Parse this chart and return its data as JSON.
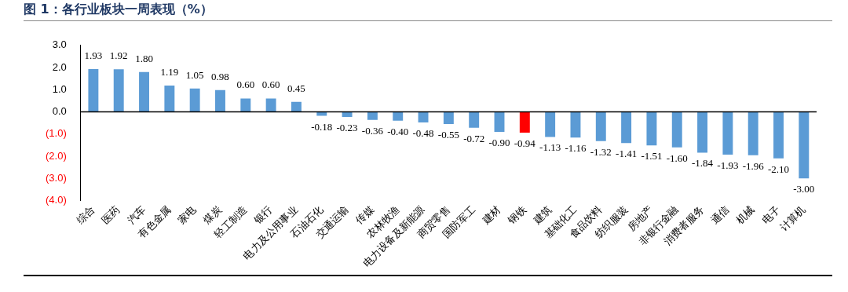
{
  "chart_data": {
    "type": "bar",
    "title": "图 1：各行业板块一周表现（%）",
    "categories": [
      "综合",
      "医药",
      "汽车",
      "有色金属",
      "家电",
      "煤炭",
      "轻工制造",
      "银行",
      "电力及公用事业",
      "石油石化",
      "交通运输",
      "传媒",
      "农林牧渔",
      "电力设备及新能源",
      "商贸零售",
      "国防军工",
      "建材",
      "钢铁",
      "建筑",
      "基础化工",
      "食品饮料",
      "纺织服装",
      "房地产",
      "非银行金融",
      "消费者服务",
      "通信",
      "机械",
      "电子",
      "计算机"
    ],
    "values": [
      1.93,
      1.92,
      1.8,
      1.19,
      1.05,
      0.98,
      0.6,
      0.6,
      0.45,
      -0.18,
      -0.23,
      -0.36,
      -0.4,
      -0.48,
      -0.55,
      -0.72,
      -0.9,
      -0.94,
      -1.13,
      -1.16,
      -1.32,
      -1.41,
      -1.51,
      -1.6,
      -1.84,
      -1.93,
      -1.96,
      -2.1,
      -3.0
    ],
    "colors": [
      "#5b9bd5",
      "#5b9bd5",
      "#5b9bd5",
      "#5b9bd5",
      "#5b9bd5",
      "#5b9bd5",
      "#5b9bd5",
      "#5b9bd5",
      "#5b9bd5",
      "#5b9bd5",
      "#5b9bd5",
      "#5b9bd5",
      "#5b9bd5",
      "#5b9bd5",
      "#5b9bd5",
      "#5b9bd5",
      "#5b9bd5",
      "#ff0000",
      "#5b9bd5",
      "#5b9bd5",
      "#5b9bd5",
      "#5b9bd5",
      "#5b9bd5",
      "#5b9bd5",
      "#5b9bd5",
      "#5b9bd5",
      "#5b9bd5",
      "#5b9bd5",
      "#5b9bd5"
    ],
    "value_labels": [
      "1.93",
      "1.92",
      "1.80",
      "1.19",
      "1.05",
      "0.98",
      "0.60",
      "0.60",
      "0.45",
      "-0.18",
      "-0.23",
      "-0.36",
      "-0.40",
      "-0.48",
      "-0.55",
      "-0.72",
      "-0.90",
      "-0.94",
      "-1.13",
      "-1.16",
      "-1.32",
      "-1.41",
      "-1.51",
      "-1.60",
      "-1.84",
      "-1.93",
      "-1.96",
      "-2.10",
      "-3.00"
    ],
    "ylim": [
      -4,
      3
    ],
    "yticks": [
      {
        "value": 3,
        "label": "3.0"
      },
      {
        "value": 2,
        "label": "2.0"
      },
      {
        "value": 1,
        "label": "1.0"
      },
      {
        "value": 0,
        "label": "0.0"
      },
      {
        "value": -1,
        "label": "(1.0)"
      },
      {
        "value": -2,
        "label": "(2.0)"
      },
      {
        "value": -3,
        "label": "(3.0)"
      },
      {
        "value": -4,
        "label": "(4.0)"
      }
    ],
    "legend": false
  }
}
